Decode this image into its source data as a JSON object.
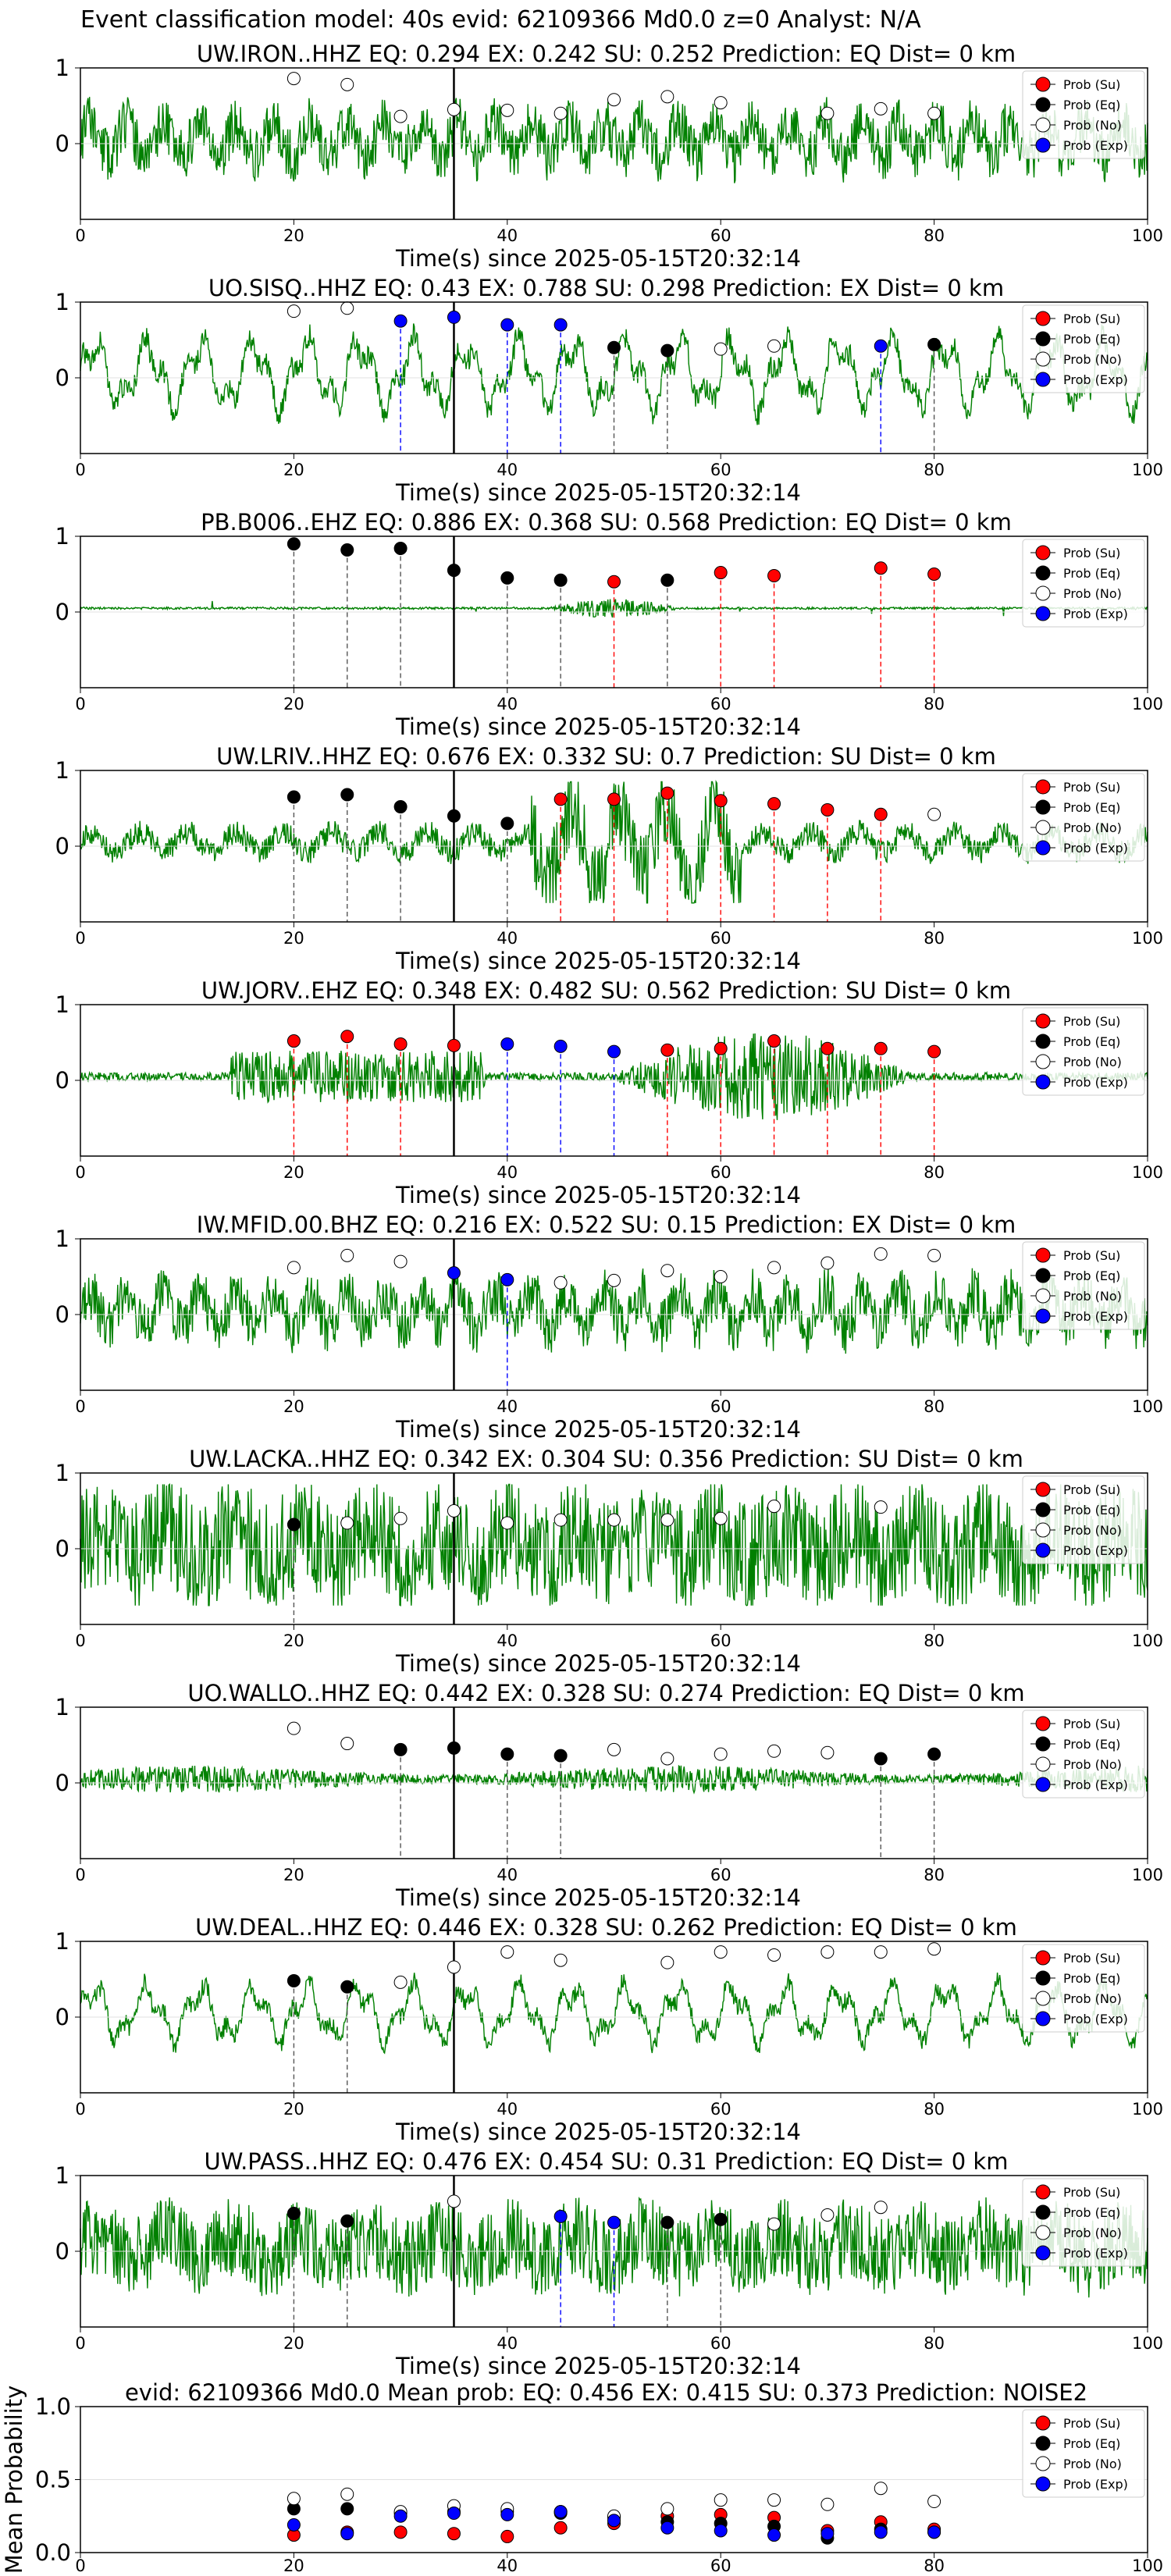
{
  "figure": {
    "suptitle": "Event classification model: 40s evid: 62109366 Md0.0 z=0 Analyst: N/A"
  },
  "legend_labels": [
    "Prob (Su)",
    "Prob (Eq)",
    "Prob (No)",
    "Prob (Exp)"
  ],
  "colors": {
    "su": "#ff0000",
    "eq": "#000000",
    "no": "#ffffff",
    "exp": "#0000ff",
    "trace": "#008000"
  },
  "chart_data": [
    {
      "type": "line",
      "title": "UW.IRON..HHZ   EQ: 0.294  EX: 0.242  SU: 0.252   Prediction: EQ    Dist= 0 km",
      "xlabel": "Time(s) since 2025-05-15T20:32:14",
      "ylabel": "",
      "xlim": [
        0,
        100
      ],
      "ylim": [
        -1,
        1
      ],
      "xticks": [
        0,
        20,
        40,
        60,
        80,
        100
      ],
      "yticks": [
        0,
        1
      ],
      "origin_line": 35,
      "trace": {
        "amplitude": 0.55,
        "kind": "mixed",
        "seed": 11
      },
      "points": [
        {
          "x": 20,
          "y": 0.86,
          "cls": "no"
        },
        {
          "x": 25,
          "y": 0.78,
          "cls": "no"
        },
        {
          "x": 30,
          "y": 0.36,
          "cls": "no"
        },
        {
          "x": 35,
          "y": 0.45,
          "cls": "no"
        },
        {
          "x": 40,
          "y": 0.44,
          "cls": "no"
        },
        {
          "x": 45,
          "y": 0.4,
          "cls": "no"
        },
        {
          "x": 50,
          "y": 0.58,
          "cls": "no"
        },
        {
          "x": 55,
          "y": 0.62,
          "cls": "no"
        },
        {
          "x": 60,
          "y": 0.54,
          "cls": "no"
        },
        {
          "x": 70,
          "y": 0.4,
          "cls": "no"
        },
        {
          "x": 75,
          "y": 0.46,
          "cls": "no"
        },
        {
          "x": 80,
          "y": 0.4,
          "cls": "no"
        }
      ]
    },
    {
      "type": "line",
      "title": "UO.SISQ..HHZ   EQ: 0.43  EX: 0.788  SU: 0.298   Prediction: EX    Dist= 0 km",
      "xlabel": "Time(s) since 2025-05-15T20:32:14",
      "ylabel": "",
      "xlim": [
        0,
        100
      ],
      "ylim": [
        -1,
        1
      ],
      "xticks": [
        0,
        20,
        40,
        60,
        80,
        100
      ],
      "yticks": [
        0,
        1
      ],
      "origin_line": 35,
      "trace": {
        "amplitude": 0.75,
        "kind": "wave",
        "seed": 23
      },
      "points": [
        {
          "x": 20,
          "y": 0.88,
          "cls": "no"
        },
        {
          "x": 25,
          "y": 0.92,
          "cls": "no"
        },
        {
          "x": 30,
          "y": 0.75,
          "cls": "exp"
        },
        {
          "x": 35,
          "y": 0.8,
          "cls": "exp"
        },
        {
          "x": 40,
          "y": 0.7,
          "cls": "exp"
        },
        {
          "x": 45,
          "y": 0.7,
          "cls": "exp"
        },
        {
          "x": 50,
          "y": 0.4,
          "cls": "eq"
        },
        {
          "x": 55,
          "y": 0.36,
          "cls": "eq"
        },
        {
          "x": 60,
          "y": 0.38,
          "cls": "no"
        },
        {
          "x": 65,
          "y": 0.42,
          "cls": "no"
        },
        {
          "x": 75,
          "y": 0.42,
          "cls": "exp"
        },
        {
          "x": 80,
          "y": 0.44,
          "cls": "eq"
        }
      ]
    },
    {
      "type": "line",
      "title": "PB.B006..EHZ   EQ: 0.886  EX: 0.368  SU: 0.568   Prediction: EQ    Dist= 0 km",
      "xlabel": "Time(s) since 2025-05-15T20:32:14",
      "ylabel": "",
      "xlim": [
        0,
        100
      ],
      "ylim": [
        -1,
        1
      ],
      "xticks": [
        0,
        20,
        40,
        60,
        80,
        100
      ],
      "yticks": [
        0,
        1
      ],
      "origin_line": 35,
      "trace": {
        "amplitude": 0.12,
        "kind": "quiet",
        "seed": 37
      },
      "points": [
        {
          "x": 20,
          "y": 0.9,
          "cls": "eq"
        },
        {
          "x": 25,
          "y": 0.82,
          "cls": "eq"
        },
        {
          "x": 30,
          "y": 0.84,
          "cls": "eq"
        },
        {
          "x": 35,
          "y": 0.55,
          "cls": "eq"
        },
        {
          "x": 40,
          "y": 0.45,
          "cls": "eq"
        },
        {
          "x": 45,
          "y": 0.42,
          "cls": "eq"
        },
        {
          "x": 50,
          "y": 0.4,
          "cls": "su"
        },
        {
          "x": 55,
          "y": 0.42,
          "cls": "eq"
        },
        {
          "x": 60,
          "y": 0.52,
          "cls": "su"
        },
        {
          "x": 65,
          "y": 0.48,
          "cls": "su"
        },
        {
          "x": 75,
          "y": 0.58,
          "cls": "su"
        },
        {
          "x": 80,
          "y": 0.5,
          "cls": "su"
        }
      ]
    },
    {
      "type": "line",
      "title": "UW.LRIV..HHZ   EQ: 0.676  EX: 0.332  SU: 0.7   Prediction: SU    Dist= 0 km",
      "xlabel": "Time(s) since 2025-05-15T20:32:14",
      "ylabel": "",
      "xlim": [
        0,
        100
      ],
      "ylim": [
        -1,
        1
      ],
      "xticks": [
        0,
        20,
        40,
        60,
        80,
        100
      ],
      "yticks": [
        0,
        1
      ],
      "origin_line": 35,
      "trace": {
        "amplitude": 0.55,
        "kind": "burst",
        "seed": 41
      },
      "points": [
        {
          "x": 20,
          "y": 0.65,
          "cls": "eq"
        },
        {
          "x": 25,
          "y": 0.68,
          "cls": "eq"
        },
        {
          "x": 30,
          "y": 0.52,
          "cls": "eq"
        },
        {
          "x": 35,
          "y": 0.4,
          "cls": "eq"
        },
        {
          "x": 40,
          "y": 0.3,
          "cls": "eq"
        },
        {
          "x": 45,
          "y": 0.62,
          "cls": "su"
        },
        {
          "x": 50,
          "y": 0.62,
          "cls": "su"
        },
        {
          "x": 55,
          "y": 0.7,
          "cls": "su"
        },
        {
          "x": 60,
          "y": 0.6,
          "cls": "su"
        },
        {
          "x": 65,
          "y": 0.56,
          "cls": "su"
        },
        {
          "x": 70,
          "y": 0.48,
          "cls": "su"
        },
        {
          "x": 75,
          "y": 0.42,
          "cls": "su"
        },
        {
          "x": 80,
          "y": 0.42,
          "cls": "no"
        }
      ]
    },
    {
      "type": "line",
      "title": "UW.JORV..EHZ   EQ: 0.348  EX: 0.482  SU: 0.562   Prediction: SU    Dist= 0 km",
      "xlabel": "Time(s) since 2025-05-15T20:32:14",
      "ylabel": "",
      "xlim": [
        0,
        100
      ],
      "ylim": [
        -1,
        1
      ],
      "xticks": [
        0,
        20,
        40,
        60,
        80,
        100
      ],
      "yticks": [
        0,
        1
      ],
      "origin_line": 35,
      "trace": {
        "amplitude": 0.45,
        "kind": "burst2",
        "seed": 53
      },
      "points": [
        {
          "x": 20,
          "y": 0.52,
          "cls": "su"
        },
        {
          "x": 25,
          "y": 0.58,
          "cls": "su"
        },
        {
          "x": 30,
          "y": 0.48,
          "cls": "su"
        },
        {
          "x": 35,
          "y": 0.46,
          "cls": "su"
        },
        {
          "x": 40,
          "y": 0.48,
          "cls": "exp"
        },
        {
          "x": 45,
          "y": 0.45,
          "cls": "exp"
        },
        {
          "x": 50,
          "y": 0.38,
          "cls": "exp"
        },
        {
          "x": 55,
          "y": 0.4,
          "cls": "su"
        },
        {
          "x": 60,
          "y": 0.42,
          "cls": "su"
        },
        {
          "x": 65,
          "y": 0.52,
          "cls": "su"
        },
        {
          "x": 70,
          "y": 0.42,
          "cls": "su"
        },
        {
          "x": 75,
          "y": 0.42,
          "cls": "su"
        },
        {
          "x": 80,
          "y": 0.38,
          "cls": "su"
        }
      ]
    },
    {
      "type": "line",
      "title": "IW.MFID.00.BHZ   EQ: 0.216  EX: 0.522  SU: 0.15   Prediction: EX    Dist= 0 km",
      "xlabel": "Time(s) since 2025-05-15T20:32:14",
      "ylabel": "",
      "xlim": [
        0,
        100
      ],
      "ylim": [
        -1,
        1
      ],
      "xticks": [
        0,
        20,
        40,
        60,
        80,
        100
      ],
      "yticks": [
        0,
        1
      ],
      "origin_line": 35,
      "trace": {
        "amplitude": 0.55,
        "kind": "mixed",
        "seed": 67
      },
      "points": [
        {
          "x": 20,
          "y": 0.62,
          "cls": "no"
        },
        {
          "x": 25,
          "y": 0.78,
          "cls": "no"
        },
        {
          "x": 30,
          "y": 0.7,
          "cls": "no"
        },
        {
          "x": 35,
          "y": 0.55,
          "cls": "exp"
        },
        {
          "x": 40,
          "y": 0.46,
          "cls": "exp"
        },
        {
          "x": 45,
          "y": 0.42,
          "cls": "no"
        },
        {
          "x": 50,
          "y": 0.45,
          "cls": "no"
        },
        {
          "x": 55,
          "y": 0.58,
          "cls": "no"
        },
        {
          "x": 60,
          "y": 0.5,
          "cls": "no"
        },
        {
          "x": 65,
          "y": 0.62,
          "cls": "no"
        },
        {
          "x": 70,
          "y": 0.68,
          "cls": "no"
        },
        {
          "x": 75,
          "y": 0.8,
          "cls": "no"
        },
        {
          "x": 80,
          "y": 0.78,
          "cls": "no"
        }
      ]
    },
    {
      "type": "line",
      "title": "UW.LACKA..HHZ   EQ: 0.342  EX: 0.304  SU: 0.356   Prediction: SU    Dist= 0 km",
      "xlabel": "Time(s) since 2025-05-15T20:32:14",
      "ylabel": "",
      "xlim": [
        0,
        100
      ],
      "ylim": [
        -1,
        1
      ],
      "xticks": [
        0,
        20,
        40,
        60,
        80,
        100
      ],
      "yticks": [
        0,
        1
      ],
      "origin_line": 35,
      "trace": {
        "amplitude": 0.85,
        "kind": "noisy",
        "seed": 71
      },
      "points": [
        {
          "x": 20,
          "y": 0.32,
          "cls": "eq"
        },
        {
          "x": 25,
          "y": 0.34,
          "cls": "no"
        },
        {
          "x": 30,
          "y": 0.4,
          "cls": "no"
        },
        {
          "x": 35,
          "y": 0.5,
          "cls": "no"
        },
        {
          "x": 40,
          "y": 0.34,
          "cls": "no"
        },
        {
          "x": 45,
          "y": 0.38,
          "cls": "no"
        },
        {
          "x": 50,
          "y": 0.38,
          "cls": "no"
        },
        {
          "x": 55,
          "y": 0.38,
          "cls": "no"
        },
        {
          "x": 60,
          "y": 0.4,
          "cls": "no"
        },
        {
          "x": 65,
          "y": 0.56,
          "cls": "no"
        },
        {
          "x": 75,
          "y": 0.55,
          "cls": "no"
        }
      ]
    },
    {
      "type": "line",
      "title": "UO.WALLO..HHZ   EQ: 0.442  EX: 0.328  SU: 0.274   Prediction: EQ    Dist= 0 km",
      "xlabel": "Time(s) since 2025-05-15T20:32:14",
      "ylabel": "",
      "xlim": [
        0,
        100
      ],
      "ylim": [
        -1,
        1
      ],
      "xticks": [
        0,
        20,
        40,
        60,
        80,
        100
      ],
      "yticks": [
        0,
        1
      ],
      "origin_line": 35,
      "trace": {
        "amplitude": 0.25,
        "kind": "quietnoise",
        "seed": 83
      },
      "points": [
        {
          "x": 20,
          "y": 0.72,
          "cls": "no"
        },
        {
          "x": 25,
          "y": 0.52,
          "cls": "no"
        },
        {
          "x": 30,
          "y": 0.44,
          "cls": "eq"
        },
        {
          "x": 35,
          "y": 0.46,
          "cls": "eq"
        },
        {
          "x": 40,
          "y": 0.38,
          "cls": "eq"
        },
        {
          "x": 45,
          "y": 0.36,
          "cls": "eq"
        },
        {
          "x": 50,
          "y": 0.44,
          "cls": "no"
        },
        {
          "x": 55,
          "y": 0.32,
          "cls": "no"
        },
        {
          "x": 60,
          "y": 0.38,
          "cls": "no"
        },
        {
          "x": 65,
          "y": 0.42,
          "cls": "no"
        },
        {
          "x": 70,
          "y": 0.4,
          "cls": "no"
        },
        {
          "x": 75,
          "y": 0.32,
          "cls": "eq"
        },
        {
          "x": 80,
          "y": 0.38,
          "cls": "eq"
        }
      ]
    },
    {
      "type": "line",
      "title": "UW.DEAL..HHZ   EQ: 0.446  EX: 0.328  SU: 0.262   Prediction: EQ    Dist= 0 km",
      "xlabel": "Time(s) since 2025-05-15T20:32:14",
      "ylabel": "",
      "xlim": [
        0,
        100
      ],
      "ylim": [
        -1,
        1
      ],
      "xticks": [
        0,
        20,
        40,
        60,
        80,
        100
      ],
      "yticks": [
        0,
        1
      ],
      "origin_line": 35,
      "trace": {
        "amplitude": 0.6,
        "kind": "wave",
        "seed": 97
      },
      "points": [
        {
          "x": 20,
          "y": 0.48,
          "cls": "eq"
        },
        {
          "x": 25,
          "y": 0.4,
          "cls": "eq"
        },
        {
          "x": 30,
          "y": 0.46,
          "cls": "no"
        },
        {
          "x": 35,
          "y": 0.66,
          "cls": "no"
        },
        {
          "x": 40,
          "y": 0.86,
          "cls": "no"
        },
        {
          "x": 45,
          "y": 0.75,
          "cls": "no"
        },
        {
          "x": 55,
          "y": 0.72,
          "cls": "no"
        },
        {
          "x": 60,
          "y": 0.86,
          "cls": "no"
        },
        {
          "x": 65,
          "y": 0.82,
          "cls": "no"
        },
        {
          "x": 70,
          "y": 0.86,
          "cls": "no"
        },
        {
          "x": 75,
          "y": 0.86,
          "cls": "no"
        },
        {
          "x": 80,
          "y": 0.9,
          "cls": "no"
        }
      ]
    },
    {
      "type": "line",
      "title": "UW.PASS..HHZ   EQ: 0.476  EX: 0.454  SU: 0.31   Prediction: EQ    Dist= 0 km",
      "xlabel": "Time(s) since 2025-05-15T20:32:14",
      "ylabel": "",
      "xlim": [
        0,
        100
      ],
      "ylim": [
        -1,
        1
      ],
      "xticks": [
        0,
        20,
        40,
        60,
        80,
        100
      ],
      "yticks": [
        0,
        1
      ],
      "origin_line": 35,
      "trace": {
        "amplitude": 0.6,
        "kind": "noisy",
        "seed": 101
      },
      "points": [
        {
          "x": 20,
          "y": 0.5,
          "cls": "eq"
        },
        {
          "x": 25,
          "y": 0.4,
          "cls": "eq"
        },
        {
          "x": 35,
          "y": 0.66,
          "cls": "no"
        },
        {
          "x": 45,
          "y": 0.46,
          "cls": "exp"
        },
        {
          "x": 50,
          "y": 0.38,
          "cls": "exp"
        },
        {
          "x": 55,
          "y": 0.38,
          "cls": "eq"
        },
        {
          "x": 60,
          "y": 0.42,
          "cls": "eq"
        },
        {
          "x": 65,
          "y": 0.36,
          "cls": "no"
        },
        {
          "x": 70,
          "y": 0.48,
          "cls": "no"
        },
        {
          "x": 75,
          "y": 0.58,
          "cls": "no"
        }
      ]
    },
    {
      "type": "scatter",
      "title": "evid: 62109366  Md0.0   Mean prob:   EQ: 0.456  EX: 0.415  SU: 0.373   Prediction: NOISE2",
      "xlabel": "",
      "ylabel": "Mean Probability",
      "xlim": [
        0,
        100
      ],
      "ylim": [
        0,
        1
      ],
      "xticks": [
        0,
        20,
        40,
        60,
        80,
        100
      ],
      "yticks": [
        0.0,
        0.5,
        1.0
      ],
      "ytick_labels": [
        "0.0",
        "0.5",
        "1.0"
      ],
      "origin_line": null,
      "trace": null,
      "series": [
        {
          "name": "Prob (Su)",
          "cls": "su",
          "x": [
            20,
            25,
            30,
            35,
            40,
            45,
            50,
            55,
            60,
            65,
            70,
            75,
            80
          ],
          "y": [
            0.12,
            0.14,
            0.14,
            0.13,
            0.11,
            0.17,
            0.2,
            0.25,
            0.26,
            0.24,
            0.15,
            0.21,
            0.16
          ]
        },
        {
          "name": "Prob (Eq)",
          "cls": "eq",
          "x": [
            20,
            25,
            30,
            35,
            40,
            45,
            50,
            55,
            60,
            65,
            70,
            75,
            80
          ],
          "y": [
            0.3,
            0.3,
            0.27,
            0.28,
            0.28,
            0.27,
            0.24,
            0.21,
            0.2,
            0.18,
            0.1,
            0.16,
            0.14
          ]
        },
        {
          "name": "Prob (No)",
          "cls": "no",
          "x": [
            20,
            25,
            30,
            35,
            40,
            45,
            50,
            55,
            60,
            65,
            70,
            75,
            80
          ],
          "y": [
            0.37,
            0.4,
            0.28,
            0.32,
            0.3,
            0.28,
            0.25,
            0.3,
            0.36,
            0.36,
            0.33,
            0.44,
            0.35
          ]
        },
        {
          "name": "Prob (Exp)",
          "cls": "exp",
          "x": [
            20,
            25,
            30,
            35,
            40,
            45,
            50,
            55,
            60,
            65,
            70,
            75,
            80
          ],
          "y": [
            0.19,
            0.13,
            0.25,
            0.27,
            0.26,
            0.28,
            0.22,
            0.17,
            0.15,
            0.12,
            0.13,
            0.14,
            0.14
          ]
        }
      ]
    }
  ]
}
